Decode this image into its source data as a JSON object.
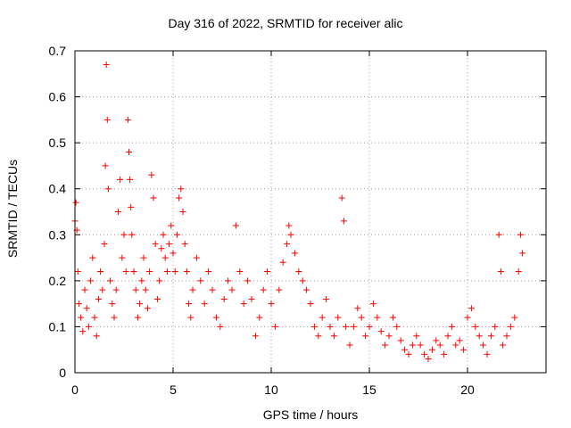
{
  "chart_data": {
    "type": "scatter",
    "title": "Day 316 of 2022, SRMTID for receiver alic",
    "xlabel": "GPS time / hours",
    "ylabel": "SRMTID / TECUs",
    "xlim": [
      0,
      24
    ],
    "ylim": [
      0,
      0.7
    ],
    "xticks": [
      0,
      5,
      10,
      15,
      20
    ],
    "yticks": [
      0,
      0.1,
      0.2,
      0.3,
      0.4,
      0.5,
      0.6,
      0.7
    ],
    "grid": true,
    "marker": "+",
    "color": "#ff0000",
    "series": [
      {
        "name": "SRMTID",
        "x": [
          0.0,
          0.05,
          0.1,
          0.15,
          0.2,
          0.3,
          0.4,
          0.5,
          0.6,
          0.7,
          0.8,
          0.9,
          1.0,
          1.1,
          1.2,
          1.3,
          1.4,
          1.5,
          1.55,
          1.6,
          1.65,
          1.7,
          1.8,
          1.9,
          2.0,
          2.1,
          2.2,
          2.3,
          2.4,
          2.5,
          2.6,
          2.7,
          2.75,
          2.8,
          2.85,
          2.9,
          3.0,
          3.1,
          3.2,
          3.3,
          3.4,
          3.5,
          3.6,
          3.7,
          3.8,
          3.9,
          4.0,
          4.1,
          4.2,
          4.3,
          4.4,
          4.5,
          4.6,
          4.7,
          4.8,
          4.9,
          5.0,
          5.1,
          5.2,
          5.3,
          5.4,
          5.5,
          5.6,
          5.7,
          5.8,
          5.9,
          6.0,
          6.2,
          6.4,
          6.6,
          6.8,
          7.0,
          7.2,
          7.4,
          7.6,
          7.8,
          8.0,
          8.2,
          8.4,
          8.6,
          8.8,
          9.0,
          9.2,
          9.4,
          9.6,
          9.8,
          10.0,
          10.2,
          10.4,
          10.6,
          10.8,
          10.9,
          11.0,
          11.2,
          11.4,
          11.6,
          11.8,
          12.0,
          12.2,
          12.4,
          12.6,
          12.8,
          13.0,
          13.2,
          13.4,
          13.6,
          13.7,
          13.8,
          14.0,
          14.2,
          14.4,
          14.6,
          14.8,
          15.0,
          15.2,
          15.4,
          15.6,
          15.8,
          16.0,
          16.2,
          16.4,
          16.6,
          16.8,
          17.0,
          17.2,
          17.4,
          17.6,
          17.8,
          18.0,
          18.2,
          18.4,
          18.6,
          18.8,
          19.0,
          19.2,
          19.4,
          19.6,
          19.8,
          20.0,
          20.2,
          20.4,
          20.6,
          20.8,
          21.0,
          21.2,
          21.4,
          21.6,
          21.7,
          21.8,
          22.0,
          22.2,
          22.4,
          22.6,
          22.7,
          22.8
        ],
        "values": [
          0.33,
          0.37,
          0.31,
          0.22,
          0.15,
          0.12,
          0.09,
          0.18,
          0.14,
          0.1,
          0.2,
          0.25,
          0.12,
          0.08,
          0.16,
          0.22,
          0.18,
          0.28,
          0.45,
          0.67,
          0.55,
          0.4,
          0.2,
          0.15,
          0.12,
          0.18,
          0.35,
          0.42,
          0.25,
          0.3,
          0.22,
          0.55,
          0.48,
          0.42,
          0.36,
          0.3,
          0.22,
          0.18,
          0.12,
          0.15,
          0.2,
          0.25,
          0.18,
          0.14,
          0.22,
          0.43,
          0.38,
          0.28,
          0.16,
          0.2,
          0.27,
          0.3,
          0.25,
          0.22,
          0.28,
          0.32,
          0.26,
          0.22,
          0.3,
          0.38,
          0.4,
          0.35,
          0.28,
          0.22,
          0.15,
          0.12,
          0.18,
          0.25,
          0.2,
          0.15,
          0.22,
          0.18,
          0.12,
          0.1,
          0.16,
          0.2,
          0.18,
          0.32,
          0.22,
          0.15,
          0.2,
          0.16,
          0.08,
          0.12,
          0.18,
          0.22,
          0.15,
          0.1,
          0.18,
          0.24,
          0.28,
          0.32,
          0.3,
          0.26,
          0.22,
          0.2,
          0.18,
          0.15,
          0.1,
          0.08,
          0.12,
          0.16,
          0.1,
          0.08,
          0.12,
          0.38,
          0.33,
          0.1,
          0.06,
          0.1,
          0.14,
          0.12,
          0.08,
          0.1,
          0.15,
          0.12,
          0.09,
          0.06,
          0.08,
          0.12,
          0.1,
          0.07,
          0.05,
          0.04,
          0.06,
          0.08,
          0.06,
          0.04,
          0.03,
          0.05,
          0.07,
          0.06,
          0.04,
          0.08,
          0.1,
          0.06,
          0.07,
          0.05,
          0.12,
          0.14,
          0.1,
          0.08,
          0.06,
          0.04,
          0.08,
          0.1,
          0.3,
          0.22,
          0.06,
          0.08,
          0.1,
          0.12,
          0.22,
          0.3,
          0.26
        ]
      }
    ]
  }
}
